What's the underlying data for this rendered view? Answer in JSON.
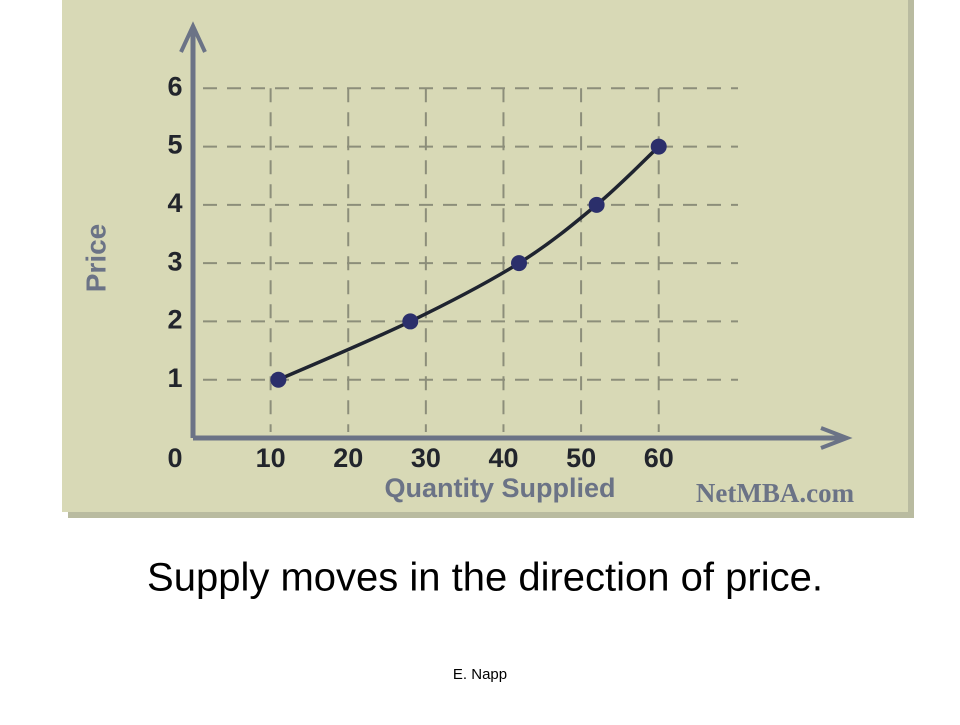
{
  "chart_data": {
    "type": "line",
    "x_label": "Quantity Supplied",
    "y_label": "Price",
    "source": "NetMBA.com",
    "x": [
      11,
      28,
      42,
      52,
      60
    ],
    "y": [
      1,
      2,
      3,
      4,
      5
    ],
    "color": "#1f2430",
    "marker_color": "#2b2f6b",
    "xlim": [
      0,
      84
    ],
    "xticks": [
      10,
      20,
      30,
      40,
      50,
      60
    ],
    "ylim": [
      0,
      7
    ],
    "yticks": [
      0,
      1,
      2,
      3,
      4,
      5,
      6
    ],
    "grid": true
  },
  "caption": "Supply moves in the direction of price.",
  "footer": "E. Napp"
}
